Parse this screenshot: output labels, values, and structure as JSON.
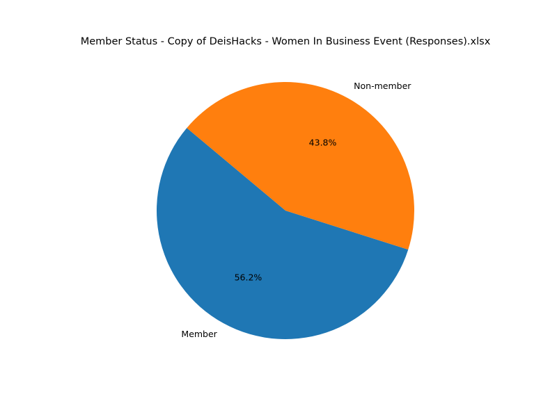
{
  "chart_data": {
    "type": "pie",
    "title": "Member Status - Copy of DeisHacks - Women In Business Event (Responses).xlsx",
    "start_angle_deg": 140,
    "direction": "counterclockwise",
    "slices": [
      {
        "label": "Member",
        "value": 56.2,
        "pct_label": "56.2%",
        "color": "#1f77b4"
      },
      {
        "label": "Non-member",
        "value": 43.8,
        "pct_label": "43.8%",
        "color": "#ff7f0e"
      }
    ]
  }
}
